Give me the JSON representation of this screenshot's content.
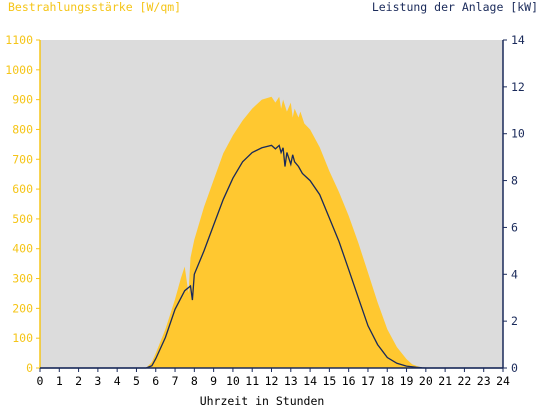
{
  "chart_data": {
    "type": "area",
    "left_axis_title": "Bestrahlungsstärke [W/qm]",
    "right_axis_title": "Leistung der Anlage [kW]",
    "xlabel": "Uhrzeit in Stunden",
    "x_range": [
      0,
      24
    ],
    "x_ticks": [
      "0",
      "1",
      "2",
      "3",
      "4",
      "5",
      "6",
      "7",
      "8",
      "9",
      "10",
      "11",
      "12",
      "13",
      "14",
      "15",
      "16",
      "17",
      "18",
      "19",
      "20",
      "21",
      "22",
      "23",
      "24"
    ],
    "y_left_range": [
      0,
      1100
    ],
    "y_left_ticks": [
      "0",
      "100",
      "200",
      "300",
      "400",
      "500",
      "600",
      "700",
      "800",
      "900",
      "1000",
      "1100"
    ],
    "y_right_range": [
      0,
      14
    ],
    "y_right_ticks": [
      "0",
      "2",
      "4",
      "6",
      "8",
      "10",
      "12",
      "14"
    ],
    "grid": false,
    "series": [
      {
        "name": "Bestrahlungsstärke",
        "axis": "left",
        "color": "#ffc830",
        "x": [
          0,
          5.5,
          5.8,
          6,
          6.5,
          7,
          7.3,
          7.5,
          7.7,
          7.8,
          8,
          8.5,
          9,
          9.5,
          10,
          10.5,
          11,
          11.5,
          12,
          12.2,
          12.4,
          12.5,
          12.6,
          12.8,
          13,
          13.1,
          13.2,
          13.4,
          13.5,
          13.7,
          14,
          14.5,
          15,
          15.5,
          16,
          16.5,
          17,
          17.5,
          18,
          18.5,
          19,
          19.3,
          19.6,
          19.8,
          20,
          24
        ],
        "y": [
          0,
          0,
          20,
          50,
          130,
          230,
          300,
          340,
          250,
          370,
          430,
          540,
          630,
          720,
          780,
          830,
          870,
          900,
          910,
          890,
          910,
          870,
          900,
          860,
          890,
          840,
          870,
          840,
          860,
          820,
          800,
          740,
          660,
          590,
          510,
          420,
          320,
          220,
          130,
          70,
          30,
          12,
          5,
          2,
          0,
          0
        ]
      },
      {
        "name": "Leistung der Anlage",
        "axis": "right",
        "color": "#1a2a5a",
        "x": [
          0,
          5.5,
          5.8,
          6,
          6.5,
          7,
          7.5,
          7.8,
          7.9,
          8.0,
          8.2,
          8.5,
          9,
          9.5,
          10,
          10.5,
          11,
          11.5,
          12,
          12.2,
          12.4,
          12.5,
          12.6,
          12.7,
          12.8,
          13,
          13.1,
          13.2,
          13.4,
          13.6,
          14,
          14.5,
          15,
          15.5,
          16,
          16.5,
          17,
          17.5,
          18,
          18.5,
          19,
          19.5,
          19.8,
          20,
          24
        ],
        "y": [
          0,
          0,
          0.1,
          0.4,
          1.3,
          2.5,
          3.3,
          3.5,
          2.9,
          4.0,
          4.4,
          5.0,
          6.1,
          7.2,
          8.1,
          8.8,
          9.2,
          9.4,
          9.5,
          9.35,
          9.5,
          9.2,
          9.4,
          8.6,
          9.2,
          8.7,
          9.1,
          8.8,
          8.6,
          8.3,
          8.0,
          7.4,
          6.4,
          5.4,
          4.2,
          3.0,
          1.8,
          1.0,
          0.45,
          0.2,
          0.08,
          0.03,
          0.01,
          0,
          0
        ]
      }
    ]
  }
}
